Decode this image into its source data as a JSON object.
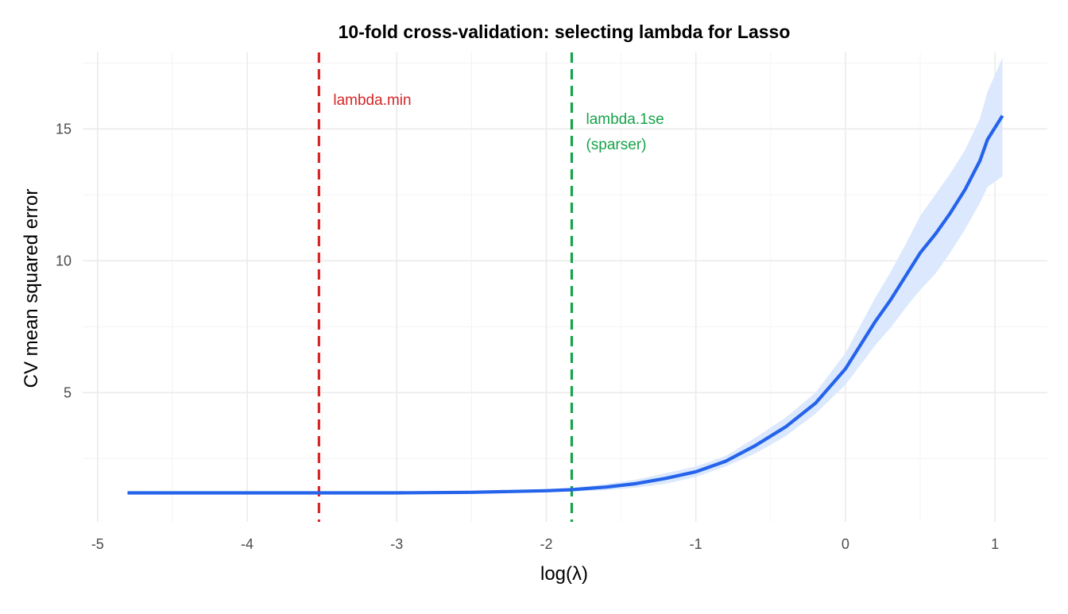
{
  "chart_data": {
    "type": "line",
    "title": "10-fold cross-validation: selecting lambda for Lasso",
    "xlabel": "log(λ)",
    "ylabel": "CV mean squared error",
    "xlim": [
      -5.1,
      1.35
    ],
    "ylim": [
      0.1,
      17.9
    ],
    "x_ticks": [
      -5,
      -4,
      -3,
      -2,
      -1,
      0,
      1
    ],
    "x_tick_labels": [
      "-5",
      "-4",
      "-3",
      "-2",
      "-1",
      "0",
      "1"
    ],
    "y_ticks": [
      5,
      10,
      15
    ],
    "y_tick_labels": [
      "5",
      "10",
      "15"
    ],
    "grid": true,
    "legend": "none",
    "colors": {
      "line": "#2563eb",
      "ribbon": "#dbe8fd",
      "lambda_min": "#d62728",
      "lambda_1se": "#16a34a",
      "grid_major": "#ebebeb",
      "grid_minor": "#f5f5f5"
    },
    "series": [
      {
        "x": [
          -4.8,
          -4.5,
          -4.0,
          -3.5,
          -3.0,
          -2.5,
          -2.0,
          -1.83,
          -1.6,
          -1.4,
          -1.2,
          -1.0,
          -0.8,
          -0.6,
          -0.4,
          -0.2,
          0.0,
          0.1,
          0.2,
          0.3,
          0.4,
          0.5,
          0.6,
          0.7,
          0.8,
          0.9,
          0.95,
          1.05
        ],
        "y": [
          1.2,
          1.2,
          1.2,
          1.2,
          1.2,
          1.22,
          1.28,
          1.32,
          1.42,
          1.55,
          1.75,
          2.0,
          2.4,
          3.0,
          3.7,
          4.6,
          5.9,
          6.8,
          7.7,
          8.5,
          9.4,
          10.3,
          11.0,
          11.8,
          12.7,
          13.8,
          14.6,
          15.5
        ],
        "lower": [
          1.15,
          1.15,
          1.15,
          1.15,
          1.15,
          1.17,
          1.22,
          1.25,
          1.3,
          1.4,
          1.55,
          1.8,
          2.2,
          2.7,
          3.35,
          4.2,
          5.3,
          6.05,
          6.8,
          7.45,
          8.2,
          8.9,
          9.5,
          10.3,
          11.2,
          12.2,
          12.8,
          13.2
        ],
        "upper": [
          1.25,
          1.25,
          1.25,
          1.25,
          1.25,
          1.27,
          1.34,
          1.39,
          1.54,
          1.7,
          1.95,
          2.2,
          2.6,
          3.3,
          4.05,
          5.0,
          6.5,
          7.55,
          8.6,
          9.55,
          10.6,
          11.7,
          12.5,
          13.3,
          14.2,
          15.4,
          16.4,
          17.7
        ]
      }
    ],
    "vlines": [
      {
        "x": -3.52,
        "label": "lambda.min",
        "label_lines": [
          "lambda.min"
        ],
        "color": "#d62728"
      },
      {
        "x": -1.83,
        "label": "lambda.1se\n(sparser)",
        "label_lines": [
          "lambda.1se",
          "(sparser)"
        ],
        "color": "#16a34a"
      }
    ]
  }
}
